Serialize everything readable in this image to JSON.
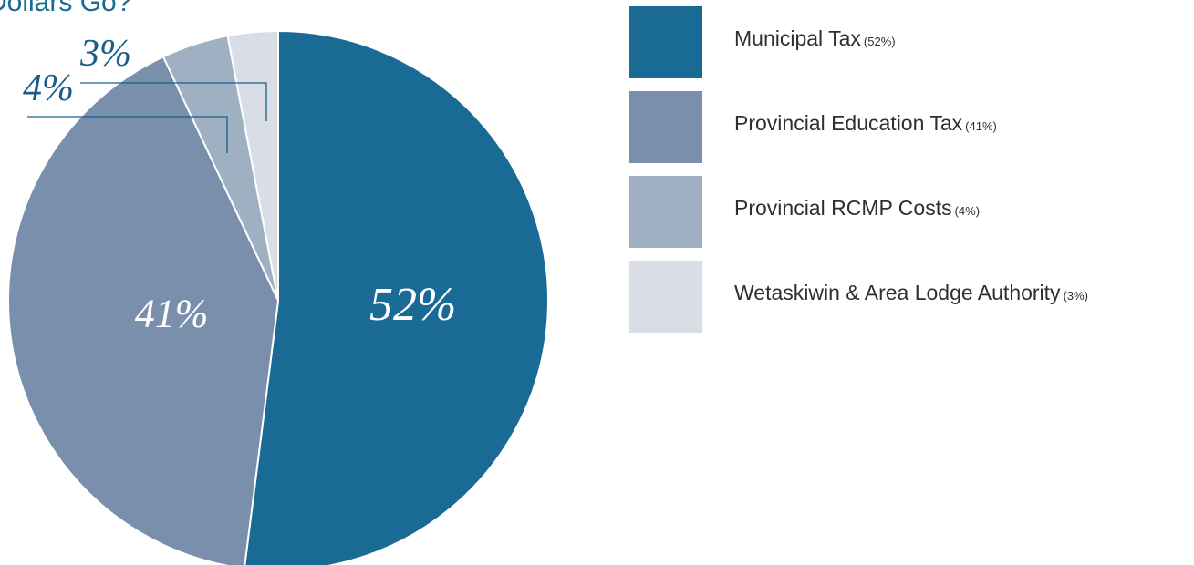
{
  "title": "Dollars Go?",
  "chart_data": {
    "type": "pie",
    "start": "top, clockwise",
    "slices": [
      {
        "name": "Municipal Tax",
        "value": 52,
        "label": "52%",
        "legend_pct": "(52%)",
        "color": "#1a6a96"
      },
      {
        "name": "Provincial Education Tax",
        "value": 41,
        "label": "41%",
        "legend_pct": "(41%)",
        "color": "#7a8fab"
      },
      {
        "name": "Provincial RCMP Costs",
        "value": 4,
        "label": "4%",
        "legend_pct": "(4%)",
        "color": "#a0b0c3"
      },
      {
        "name": "Wetaskiwin & Area Lodge Authority",
        "value": 3,
        "label": "3%",
        "legend_pct": "(3%)",
        "color": "#d8dde6"
      }
    ],
    "legend_position": "right"
  }
}
